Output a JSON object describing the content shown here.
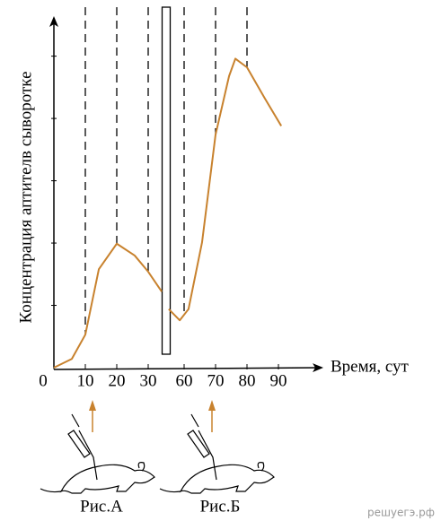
{
  "chart_data": {
    "type": "line",
    "y_label": "Концентрация аптителв сыворотке",
    "x_label": "Время, сут",
    "x": [
      0,
      5.7,
      10,
      14.3,
      20,
      25.7,
      30,
      34.3,
      45,
      55.1,
      58.6,
      61.4,
      65.7,
      70,
      74.3,
      76.3,
      80,
      85.7,
      90.9
    ],
    "series": [
      {
        "color": "#c8822e",
        "values": [
          0,
          0.14,
          0.53,
          1.58,
          1.99,
          1.8,
          1.54,
          1.22,
          null,
          0.94,
          0.76,
          0.94,
          2.01,
          3.74,
          4.68,
          4.96,
          4.82,
          4.32,
          3.88
        ]
      }
    ],
    "xlim": [
      0,
      103
    ],
    "ylim": [
      0,
      5.7
    ],
    "xticks": [
      0,
      10,
      20,
      30,
      60,
      70,
      80,
      90
    ],
    "yticks": [
      1,
      2,
      3,
      4,
      5
    ],
    "axis_break": [
      35,
      55
    ],
    "dashed_lines": [
      10,
      20,
      30,
      60,
      70,
      80
    ]
  },
  "illustrations": {
    "labels": [
      "Рис.А",
      "Рис.Б"
    ],
    "arrow_color": "#c8822e"
  },
  "watermark": "решуегэ.рф"
}
